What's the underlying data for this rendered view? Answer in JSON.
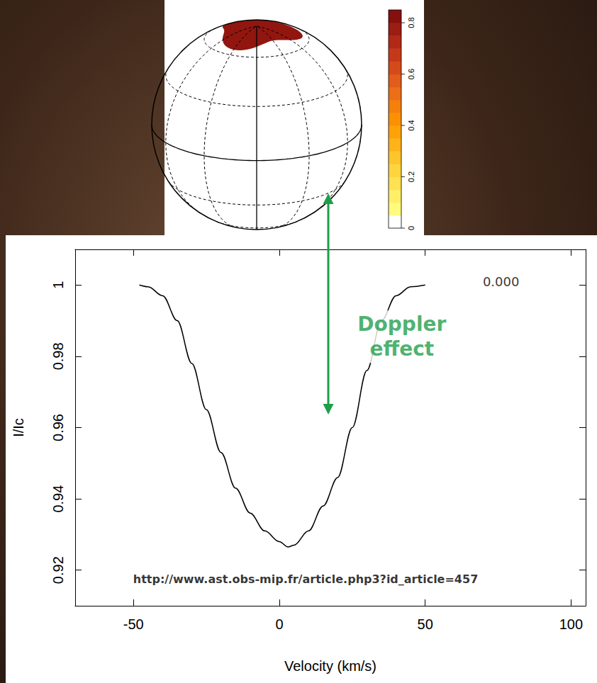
{
  "chart_data": {
    "type": "line",
    "x": [
      -48,
      -45,
      -40,
      -35,
      -30,
      -25,
      -20,
      -15,
      -10,
      -5,
      0,
      3,
      5,
      10,
      15,
      20,
      25,
      30,
      35,
      40,
      45,
      50
    ],
    "values": [
      1.0,
      0.9995,
      0.997,
      0.99,
      0.978,
      0.965,
      0.953,
      0.943,
      0.936,
      0.931,
      0.928,
      0.9265,
      0.927,
      0.931,
      0.938,
      0.946,
      0.96,
      0.976,
      0.99,
      0.997,
      0.9995,
      1.0
    ],
    "color": "#000000",
    "xlabel": "Velocity (km/s)",
    "ylabel": "I/Ic",
    "xlim": [
      -70,
      105
    ],
    "xticks": [
      -50,
      0,
      50,
      100
    ],
    "ylim": [
      0.91,
      1.01
    ],
    "yticks": [
      0.92,
      0.94,
      0.96,
      0.98,
      1
    ],
    "grid": false,
    "annotations": [
      {
        "text": "0.000",
        "x": 76,
        "y": 1.001
      },
      {
        "text": "http://www.ast.obs-mip.fr/article.php3?id_article=457",
        "x": 9,
        "y": 0.9174
      },
      {
        "text": "Doppler effect",
        "x": 42,
        "y": 0.9855,
        "color": "#1e9e4a"
      }
    ]
  },
  "diagram": {
    "colorbar": {
      "range": [
        0,
        0.85
      ],
      "ticks": [
        0,
        0.2,
        0.4,
        0.6,
        0.8
      ]
    },
    "spot_value": 0.8
  }
}
